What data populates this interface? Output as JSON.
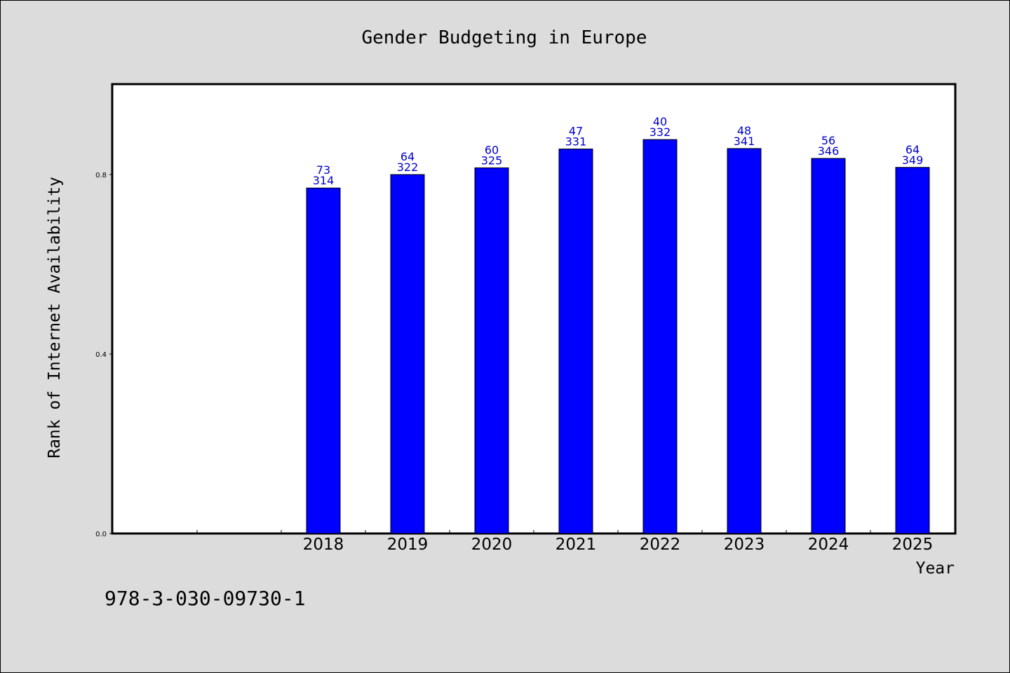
{
  "chart_data": {
    "type": "bar",
    "title": "Gender Budgeting in Europe",
    "xlabel": "Year",
    "ylabel": "Rank of Internet Availability",
    "categories": [
      "",
      "",
      "2018",
      "2019",
      "2020",
      "2021",
      "2022",
      "2023",
      "2024",
      "2025"
    ],
    "values": [
      null,
      null,
      0.77,
      0.8,
      0.815,
      0.857,
      0.878,
      0.858,
      0.836,
      0.816
    ],
    "label_top": [
      null,
      null,
      "73",
      "64",
      "60",
      "47",
      "40",
      "48",
      "56",
      "64"
    ],
    "label_bottom": [
      null,
      null,
      "314",
      "322",
      "325",
      "331",
      "332",
      "341",
      "346",
      "349"
    ],
    "yticks": [
      0.0,
      0.4,
      0.8
    ],
    "ytick_labels": [
      "0.0",
      "0.4",
      "0.8"
    ],
    "ylim": [
      0,
      1.0
    ],
    "grid": false,
    "bar_color": "#0000ff",
    "label_color": "#0000cc",
    "background": "#dcdcdc",
    "plot_background": "#ffffff"
  },
  "footer": {
    "text": "978-3-030-09730-1"
  }
}
